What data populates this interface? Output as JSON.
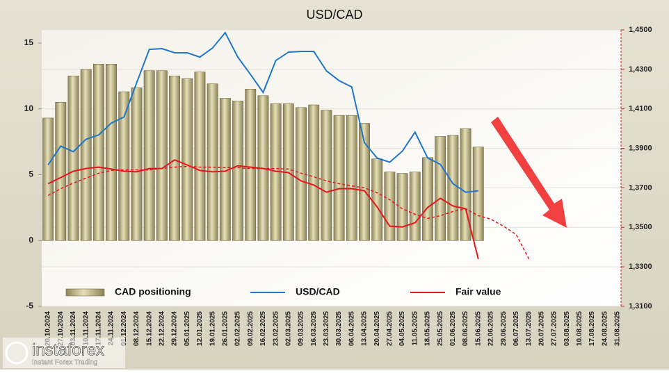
{
  "chart_data": {
    "type": "bar",
    "title": "USD/CAD",
    "categories": [
      "20.10.2024",
      "27.10.2024",
      "03.11.2024",
      "10.11.2024",
      "17.11.2024",
      "24.11.2024",
      "01.12.2024",
      "08.12.2024",
      "15.12.2024",
      "22.12.2024",
      "29.12.2024",
      "05.01.2025",
      "12.01.2025",
      "19.01.2025",
      "26.01.2025",
      "02.02.2025",
      "09.02.2025",
      "16.02.2025",
      "23.02.2025",
      "02.03.2025",
      "09.03.2025",
      "16.03.2025",
      "23.03.2025",
      "30.03.2025",
      "06.04.2025",
      "13.04.2025",
      "20.04.2025",
      "27.04.2025",
      "04.05.2025",
      "11.05.2025",
      "18.05.2025",
      "25.05.2025",
      "01.06.2025",
      "08.06.2025",
      "15.06.2025",
      "22.06.2025",
      "29.06.2025",
      "06.07.2025",
      "13.07.2025",
      "20.07.2025",
      "27.07.2025",
      "03.08.2025",
      "10.08.2025",
      "17.08.2025",
      "24.08.2025",
      "31.08.2025"
    ],
    "ylim": [
      -5,
      16
    ],
    "yticks": [
      -5,
      0,
      5,
      10,
      15
    ],
    "y2lim": [
      1.31,
      1.45
    ],
    "y2ticks": [
      {
        "value": 1.31,
        "label": "1,3100"
      },
      {
        "value": 1.33,
        "label": "1,3300"
      },
      {
        "value": 1.35,
        "label": "1,3500"
      },
      {
        "value": 1.37,
        "label": "1,3700"
      },
      {
        "value": 1.39,
        "label": "1,3900"
      },
      {
        "value": 1.41,
        "label": "1,4100"
      },
      {
        "value": 1.43,
        "label": "1,4300"
      },
      {
        "value": 1.45,
        "label": "1,4500"
      }
    ],
    "grid": true,
    "series": [
      {
        "name": "CAD positioning",
        "type": "bar",
        "color": "#c8bf8c",
        "values": [
          9.3,
          10.5,
          12.5,
          13.0,
          13.4,
          13.4,
          11.3,
          11.6,
          12.9,
          12.9,
          12.5,
          12.3,
          12.8,
          11.9,
          10.8,
          10.6,
          11.5,
          11.0,
          10.4,
          10.4,
          10.1,
          10.3,
          9.9,
          9.5,
          9.5,
          8.9,
          6.2,
          5.2,
          5.1,
          5.2,
          6.3,
          7.9,
          8.0,
          8.5,
          7.1,
          null,
          null,
          null,
          null,
          null,
          null,
          null,
          null,
          null,
          null,
          null
        ]
      },
      {
        "name": "USD/CAD",
        "type": "line",
        "axis": "y2",
        "color": "#1f77c8",
        "values": [
          1.3816,
          1.3911,
          1.3883,
          1.3946,
          1.3968,
          1.4028,
          1.4059,
          1.4232,
          1.4401,
          1.4405,
          1.4384,
          1.4384,
          1.4362,
          1.4408,
          1.4486,
          1.4362,
          1.4274,
          1.4183,
          1.4345,
          1.4387,
          1.4391,
          1.4391,
          1.4292,
          1.4243,
          1.4211,
          1.3929,
          1.3851,
          1.383,
          1.3886,
          1.3982,
          1.3851,
          1.3819,
          1.3721,
          1.3678,
          1.3685,
          null,
          null,
          null,
          null,
          null,
          null,
          null,
          null,
          null,
          null,
          null
        ]
      },
      {
        "name": "Fair value",
        "type": "line",
        "axis": "y2",
        "color": "#e8141c",
        "values": [
          1.3721,
          1.3752,
          1.3784,
          1.3798,
          1.3805,
          1.3795,
          1.3784,
          1.3781,
          1.3798,
          1.3798,
          1.3841,
          1.3816,
          1.3788,
          1.3781,
          1.3784,
          1.3812,
          1.3805,
          1.3798,
          1.3784,
          1.3777,
          1.3735,
          1.3714,
          1.3678,
          1.3696,
          1.3696,
          1.3685,
          1.3604,
          1.3506,
          1.3502,
          1.3523,
          1.3601,
          1.3647,
          1.3608,
          1.3594,
          1.334,
          null,
          null,
          null,
          null,
          null,
          null,
          null,
          null,
          null,
          null,
          null
        ]
      },
      {
        "type": "line",
        "axis": "y2",
        "dash": true,
        "color": "#e8141c",
        "values": [
          1.3661,
          1.3696,
          1.3724,
          1.3749,
          1.3774,
          1.3788,
          1.3791,
          1.3791,
          1.3791,
          1.3798,
          1.3805,
          1.3809,
          1.3805,
          1.3805,
          1.3802,
          1.3802,
          1.3798,
          1.3798,
          1.3798,
          1.3795,
          1.3774,
          1.3756,
          1.3735,
          1.3721,
          1.371,
          1.37,
          1.3675,
          1.364,
          1.3594,
          1.3566,
          1.3545,
          1.3559,
          1.358,
          1.3594,
          1.3559,
          1.3541,
          1.3506,
          1.3463,
          1.334,
          null,
          null,
          null,
          null,
          null,
          null,
          null
        ]
      }
    ]
  },
  "logo": {
    "name": "instaforex",
    "tagline": "Instant Forex Trading"
  }
}
